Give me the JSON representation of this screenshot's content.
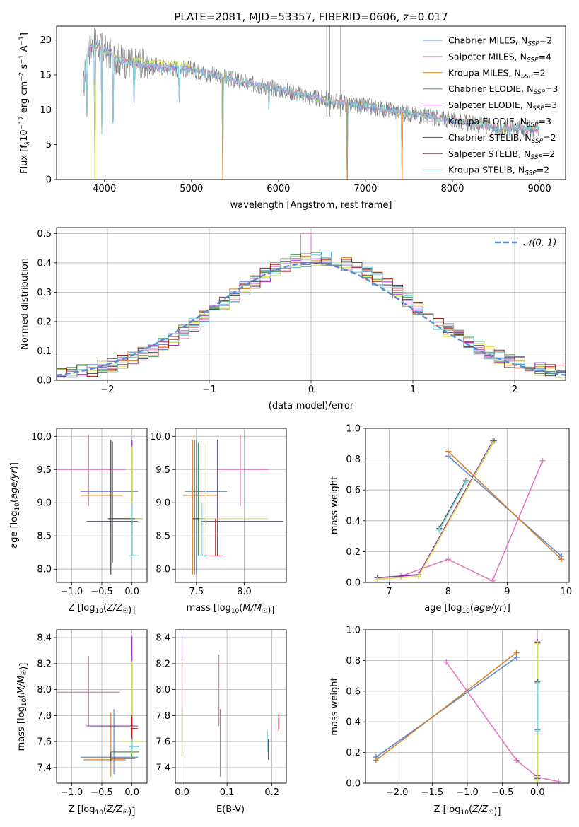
{
  "figure": {
    "title": "PLATE=2081, MJD=53357, FIBERID=0606, z=0.017"
  },
  "colors": {
    "chabrier_miles": "#5b8bd6",
    "salpeter_miles": "#e377c2",
    "kroupa_miles": "#d9822b",
    "chabrier_elodie": "#4a9a4a",
    "salpeter_elodie": "#9b2fc4",
    "kroupa_elodie": "#d4e24a",
    "chabrier_stelib": "#555555",
    "salpeter_stelib": "#b01a1a",
    "kroupa_stelib": "#7fd6dc",
    "observed": "#808080",
    "gauss": "#5b8bd6"
  },
  "chart_data": [
    {
      "id": "spectrum",
      "type": "line",
      "title": "PLATE=2081, MJD=53357, FIBERID=0606, z=0.017",
      "xlabel": "wavelength [Angstrom, rest frame]",
      "ylabel": "Flux [f",
      "xlim": [
        3450,
        9300
      ],
      "ylim": [
        0,
        22
      ],
      "xticks": [
        "4000",
        "5000",
        "6000",
        "7000",
        "8000",
        "9000"
      ],
      "yticks": [
        "0",
        "5",
        "10",
        "15",
        "20"
      ],
      "legend_position": "top-right",
      "legend": [
        {
          "label": "Chabrier MILES, N",
          "n": "2",
          "color_key": "chabrier_miles"
        },
        {
          "label": "Salpeter MILES, N",
          "n": "4",
          "color_key": "salpeter_miles"
        },
        {
          "label": "Kroupa MILES, N",
          "n": "2",
          "color_key": "kroupa_miles"
        },
        {
          "label": "Chabrier ELODIE, N",
          "n": "3",
          "color_key": "chabrier_elodie"
        },
        {
          "label": "Salpeter ELODIE, N",
          "n": "3",
          "color_key": "salpeter_elodie"
        },
        {
          "label": "Kroupa ELODIE, N",
          "n": "3",
          "color_key": "kroupa_elodie"
        },
        {
          "label": "Chabrier STELIB, N",
          "n": "2",
          "color_key": "chabrier_stelib"
        },
        {
          "label": "Salpeter STELIB, N",
          "n": "2",
          "color_key": "salpeter_stelib"
        },
        {
          "label": "Kroupa STELIB, N",
          "n": "2",
          "color_key": "kroupa_stelib"
        }
      ],
      "model_continuum": [
        [
          3760,
          13.0
        ],
        [
          3800,
          18.5
        ],
        [
          3900,
          19.5
        ],
        [
          4000,
          18.5
        ],
        [
          4200,
          17.0
        ],
        [
          4500,
          16.3
        ],
        [
          5000,
          15.8
        ],
        [
          5500,
          14.2
        ],
        [
          6000,
          13.0
        ],
        [
          6500,
          11.5
        ],
        [
          7000,
          10.5
        ],
        [
          7500,
          9.5
        ],
        [
          8000,
          8.5
        ],
        [
          8500,
          7.5
        ],
        [
          9000,
          7.2
        ]
      ],
      "absorption_lines": [
        [
          3800,
          9.0
        ],
        [
          3890,
          0
        ],
        [
          3970,
          6.5
        ],
        [
          4100,
          8.0
        ],
        [
          4340,
          10.5
        ],
        [
          4861,
          11.0
        ],
        [
          5175,
          14.0
        ],
        [
          5360,
          0
        ],
        [
          5890,
          10.0
        ],
        [
          6563,
          10.5
        ],
        [
          6790,
          0
        ],
        [
          7420,
          0
        ],
        [
          8500,
          6.5
        ],
        [
          8540,
          6.0
        ],
        [
          8660,
          6.0
        ]
      ],
      "spikes": [
        [
          6555,
          22
        ],
        [
          6590,
          22
        ],
        [
          6715,
          22
        ]
      ]
    },
    {
      "id": "residual_hist",
      "type": "line",
      "xlabel": "(data-model)/error",
      "ylabel": "Normed distribution",
      "xlim": [
        -2.5,
        2.5
      ],
      "ylim": [
        0,
        0.52
      ],
      "xticks": [
        "−2",
        "−1",
        "0",
        "1",
        "2"
      ],
      "yticks": [
        "0.0",
        "0.1",
        "0.2",
        "0.3",
        "0.4",
        "0.5"
      ],
      "legend_position": "top-right",
      "legend": [
        {
          "label": "𝒩(0, 1)"
        }
      ],
      "bin_width": 0.1
    },
    {
      "id": "age_vs_Z",
      "type": "scatter",
      "xlabel": "Z [log",
      "ylabel": "age  [log",
      "xlim": [
        -1.25,
        0.25
      ],
      "ylim": [
        7.8,
        10.12
      ],
      "xticks": [
        "−1.0",
        "−0.5",
        "0.0"
      ],
      "yticks": [
        "8.0",
        "8.5",
        "9.0",
        "9.5",
        "10.0"
      ],
      "points": [
        {
          "c": "chabrier_miles",
          "x": -0.32,
          "xlo": -0.85,
          "xhi": 0.1,
          "y": 9.17,
          "ylo": 8.1,
          "yhi": 9.92
        },
        {
          "c": "salpeter_miles",
          "x": -0.72,
          "xlo": -1.25,
          "xhi": -0.1,
          "y": 9.5,
          "ylo": 8.95,
          "yhi": 10.02
        },
        {
          "c": "kroupa_miles",
          "x": -0.35,
          "xlo": -0.85,
          "xhi": -0.15,
          "y": 9.11,
          "ylo": 7.92,
          "yhi": 9.92
        },
        {
          "c": "chabrier_elodie",
          "x": 0.0,
          "xlo": -0.3,
          "xhi": 0.18,
          "y": 8.76,
          "ylo": 8.2,
          "yhi": 9.9
        },
        {
          "c": "salpeter_elodie",
          "x": 0.0,
          "xlo": -0.75,
          "xhi": 0.1,
          "y": 8.72,
          "ylo": 8.2,
          "yhi": 9.95
        },
        {
          "c": "kroupa_elodie",
          "x": 0.0,
          "xlo": -0.2,
          "xhi": 0.18,
          "y": 8.76,
          "ylo": 8.2,
          "yhi": 9.85
        },
        {
          "c": "chabrier_stelib",
          "x": -0.35,
          "xlo": -0.4,
          "xhi": 0.05,
          "y": 8.76,
          "ylo": 7.92,
          "yhi": 9.95
        },
        {
          "c": "salpeter_stelib",
          "x": 0.0,
          "xlo": -0.02,
          "xhi": 0.12,
          "y": 8.2,
          "ylo": 8.2,
          "yhi": 8.76
        },
        {
          "c": "kroupa_stelib",
          "x": 0.0,
          "xlo": -0.05,
          "xhi": 0.12,
          "y": 8.2,
          "ylo": 8.2,
          "yhi": 9.0
        }
      ]
    },
    {
      "id": "age_vs_mass",
      "type": "scatter",
      "xlabel": "mass [log",
      "ylabel": "",
      "xlim": [
        7.28,
        8.44
      ],
      "ylim": [
        7.8,
        10.12
      ],
      "xticks": [
        "7.5",
        "8.0"
      ],
      "yticks": [
        "8.0",
        "8.5",
        "9.0",
        "9.5",
        "10.0"
      ],
      "points": [
        {
          "c": "chabrier_miles",
          "x": 7.5,
          "xlo": 7.38,
          "xhi": 7.82,
          "y": 9.17,
          "ylo": 7.92,
          "yhi": 9.95
        },
        {
          "c": "salpeter_miles",
          "x": 7.96,
          "xlo": 7.72,
          "xhi": 8.26,
          "y": 9.5,
          "ylo": 8.95,
          "yhi": 10.02
        },
        {
          "c": "kroupa_miles",
          "x": 7.46,
          "xlo": 7.36,
          "xhi": 7.72,
          "y": 9.11,
          "ylo": 7.92,
          "yhi": 9.95
        },
        {
          "c": "chabrier_elodie",
          "x": 7.52,
          "xlo": 7.5,
          "xhi": 7.6,
          "y": 8.76,
          "ylo": 8.2,
          "yhi": 9.9
        },
        {
          "c": "salpeter_elodie",
          "x": 7.72,
          "xlo": 7.55,
          "xhi": 8.41,
          "y": 8.72,
          "ylo": 8.2,
          "yhi": 9.95
        },
        {
          "c": "kroupa_elodie",
          "x": 7.6,
          "xlo": 7.52,
          "xhi": 8.25,
          "y": 8.76,
          "ylo": 8.2,
          "yhi": 9.9
        },
        {
          "c": "chabrier_stelib",
          "x": 7.48,
          "xlo": 7.46,
          "xhi": 7.53,
          "y": 8.76,
          "ylo": 7.92,
          "yhi": 9.95
        },
        {
          "c": "salpeter_stelib",
          "x": 7.7,
          "xlo": 7.58,
          "xhi": 7.78,
          "y": 8.2,
          "ylo": 8.2,
          "yhi": 8.76
        },
        {
          "c": "kroupa_stelib",
          "x": 7.56,
          "xlo": 7.52,
          "xhi": 7.62,
          "y": 8.2,
          "ylo": 8.2,
          "yhi": 9.0
        }
      ]
    },
    {
      "id": "mass_weight_vs_age",
      "type": "line",
      "xlabel": "age  [log",
      "ylabel": "mass weight",
      "xlim": [
        6.6,
        10.05
      ],
      "ylim": [
        0,
        1
      ],
      "xticks": [
        "7",
        "8",
        "9",
        "10"
      ],
      "yticks": [
        "0.0",
        "0.2",
        "0.4",
        "0.6",
        "0.8",
        "1.0"
      ],
      "series": [
        {
          "c": "chabrier_miles",
          "x": [
            8.0,
            9.92
          ],
          "y": [
            0.82,
            0.17
          ]
        },
        {
          "c": "kroupa_miles",
          "x": [
            8.0,
            9.92
          ],
          "y": [
            0.85,
            0.15
          ]
        },
        {
          "c": "salpeter_miles",
          "x": [
            7.2,
            8.0,
            8.75,
            9.6
          ],
          "y": [
            0.04,
            0.15,
            0.01,
            0.79
          ]
        },
        {
          "c": "chabrier_elodie",
          "x": [
            6.8,
            7.5,
            8.78
          ],
          "y": [
            0.03,
            0.05,
            0.92
          ]
        },
        {
          "c": "salpeter_elodie",
          "x": [
            6.8,
            7.5,
            8.76
          ],
          "y": [
            0.03,
            0.05,
            0.92
          ]
        },
        {
          "c": "kroupa_elodie",
          "x": [
            6.8,
            7.5,
            8.76
          ],
          "y": [
            0.02,
            0.04,
            0.91
          ]
        },
        {
          "c": "chabrier_stelib",
          "x": [
            7.85,
            8.3
          ],
          "y": [
            0.35,
            0.66
          ]
        },
        {
          "c": "kroupa_stelib",
          "x": [
            7.85,
            8.3
          ],
          "y": [
            0.34,
            0.65
          ]
        }
      ]
    },
    {
      "id": "mass_vs_Z",
      "type": "scatter",
      "xlabel": "Z [log",
      "ylabel": "mass [log",
      "xlim": [
        -1.25,
        0.25
      ],
      "ylim": [
        7.28,
        8.46
      ],
      "xticks": [
        "−1.0",
        "−0.5",
        "0.0"
      ],
      "yticks": [
        "7.4",
        "7.6",
        "7.8",
        "8.0",
        "8.2",
        "8.4"
      ],
      "points": [
        {
          "c": "chabrier_miles",
          "x": -0.3,
          "xlo": -0.85,
          "xhi": 0.1,
          "y": 7.48,
          "ylo": 7.35,
          "yhi": 7.85
        },
        {
          "c": "salpeter_miles",
          "x": -0.72,
          "xlo": -1.25,
          "xhi": -0.2,
          "y": 7.98,
          "ylo": 7.72,
          "yhi": 8.26
        },
        {
          "c": "kroupa_miles",
          "x": -0.35,
          "xlo": -0.8,
          "xhi": -0.1,
          "y": 7.46,
          "ylo": 7.33,
          "yhi": 7.82
        },
        {
          "c": "chabrier_elodie",
          "x": 0.0,
          "xlo": -0.35,
          "xhi": 0.12,
          "y": 7.52,
          "ylo": 7.48,
          "yhi": 7.85
        },
        {
          "c": "salpeter_elodie",
          "x": 0.0,
          "xlo": -0.75,
          "xhi": 0.1,
          "y": 7.72,
          "ylo": 7.55,
          "yhi": 8.41
        },
        {
          "c": "kroupa_elodie",
          "x": 0.0,
          "xlo": -0.18,
          "xhi": 0.2,
          "y": 7.6,
          "ylo": 7.5,
          "yhi": 8.22
        },
        {
          "c": "chabrier_stelib",
          "x": -0.35,
          "xlo": -0.35,
          "xhi": 0.05,
          "y": 7.47,
          "ylo": 7.45,
          "yhi": 7.52
        },
        {
          "c": "salpeter_stelib",
          "x": 0.0,
          "xlo": -0.02,
          "xhi": 0.1,
          "y": 7.7,
          "ylo": 7.6,
          "yhi": 7.8
        },
        {
          "c": "kroupa_stelib",
          "x": 0.0,
          "xlo": -0.05,
          "xhi": 0.12,
          "y": 7.56,
          "ylo": 7.52,
          "yhi": 7.62
        }
      ]
    },
    {
      "id": "mass_vs_ebv",
      "type": "scatter",
      "xlabel": "E(B-V)",
      "ylabel": "",
      "xlim": [
        -0.015,
        0.232
      ],
      "ylim": [
        7.28,
        8.46
      ],
      "xticks": [
        "0.0",
        "0.1",
        "0.2"
      ],
      "yticks": [
        "7.4",
        "7.6",
        "7.8",
        "8.0",
        "8.2",
        "8.4"
      ],
      "points": [
        {
          "c": "chabrier_miles",
          "x": 0.085,
          "y": 7.48,
          "ylo": 7.35,
          "yhi": 7.85
        },
        {
          "c": "salpeter_miles",
          "x": 0.082,
          "y": 7.98,
          "ylo": 7.72,
          "yhi": 8.27
        },
        {
          "c": "kroupa_miles",
          "x": 0.085,
          "y": 7.46,
          "ylo": 7.33,
          "yhi": 7.82
        },
        {
          "c": "chabrier_elodie",
          "x": 0.0,
          "y": 7.52,
          "ylo": 7.48,
          "yhi": 7.85
        },
        {
          "c": "salpeter_elodie",
          "x": 0.0,
          "y": 7.72,
          "ylo": 7.6,
          "yhi": 8.41
        },
        {
          "c": "kroupa_elodie",
          "x": 0.0,
          "y": 7.6,
          "ylo": 7.5,
          "yhi": 8.22
        },
        {
          "c": "chabrier_stelib",
          "x": 0.192,
          "y": 7.55,
          "ylo": 7.46,
          "yhi": 7.62
        },
        {
          "c": "salpeter_stelib",
          "x": 0.215,
          "y": 7.72,
          "ylo": 7.68,
          "yhi": 7.81
        },
        {
          "c": "kroupa_stelib",
          "x": 0.19,
          "y": 7.6,
          "ylo": 7.52,
          "yhi": 7.68
        }
      ]
    },
    {
      "id": "mass_weight_vs_Z",
      "type": "line",
      "xlabel": "Z [log",
      "ylabel": "mass weight",
      "xlim": [
        -2.45,
        0.45
      ],
      "ylim": [
        0,
        1
      ],
      "xticks": [
        "−2.0",
        "−1.5",
        "−1.0",
        "−0.5",
        "0.0"
      ],
      "yticks": [
        "0.0",
        "0.2",
        "0.4",
        "0.6",
        "0.8",
        "1.0"
      ],
      "series": [
        {
          "c": "chabrier_miles",
          "x": [
            -2.3,
            -0.3
          ],
          "y": [
            0.17,
            0.82
          ]
        },
        {
          "c": "kroupa_miles",
          "x": [
            -2.3,
            -0.3
          ],
          "y": [
            0.15,
            0.85
          ]
        },
        {
          "c": "salpeter_miles",
          "x": [
            -1.3,
            -0.3,
            0.0,
            0.3
          ],
          "y": [
            0.79,
            0.15,
            0.04,
            0.01
          ]
        },
        {
          "c": "chabrier_elodie",
          "x": [
            0.0,
            0.0,
            0.0
          ],
          "y": [
            0.03,
            0.05,
            0.92
          ]
        },
        {
          "c": "salpeter_elodie",
          "x": [
            0.0,
            0.0,
            0.0
          ],
          "y": [
            0.03,
            0.05,
            0.92
          ]
        },
        {
          "c": "kroupa_elodie",
          "x": [
            0.0,
            0.0,
            0.0
          ],
          "y": [
            0.02,
            0.04,
            0.91
          ]
        },
        {
          "c": "chabrier_stelib",
          "x": [
            0.0,
            0.0
          ],
          "y": [
            0.35,
            0.66
          ]
        },
        {
          "c": "kroupa_stelib",
          "x": [
            0.0,
            0.0
          ],
          "y": [
            0.34,
            0.65
          ]
        }
      ]
    }
  ]
}
